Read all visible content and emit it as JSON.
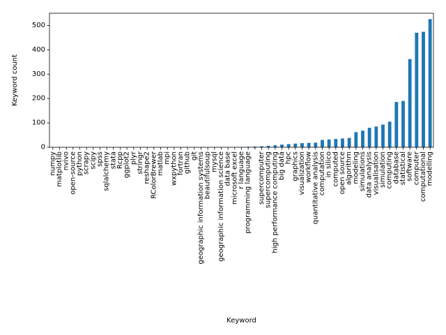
{
  "chart_data": {
    "type": "bar",
    "xlabel": "Keyword",
    "ylabel": "Keyword count",
    "ylim": [
      0,
      550
    ],
    "yticks": [
      0,
      100,
      200,
      300,
      400,
      500
    ],
    "grid": false,
    "bar_color": "#1f77b4",
    "categories": [
      "numpy",
      "matplotlib",
      "nvivo",
      "open-source",
      "python",
      "scrapy",
      "scipy",
      "spss",
      "sqlalchemy",
      "stata",
      "Rcpp",
      "ggplot2",
      "plyr",
      "stringr",
      "reshape2",
      "RColorBrewer",
      "matlab",
      "mpi",
      "wxpython",
      "fortran",
      "github",
      "git",
      "geographic information systems",
      "beautifulsoup",
      "mysql",
      "geographic information science",
      "data base",
      "microsoft excel",
      "r language",
      "programming language",
      "",
      "supercomputer",
      "supercomputing",
      "high performance computing",
      "big data",
      "hpc",
      "graphics",
      "visualization",
      "workflow",
      "quantitative analysis",
      "computation",
      "in silico",
      "computed",
      "open source",
      "algorithm",
      "modeling",
      "simulations",
      "data analysis",
      "visualisation",
      "simulation",
      "computing",
      "database",
      "statistical",
      "software",
      "computer",
      "computational",
      "modelling"
    ],
    "values": [
      0,
      0,
      0,
      0,
      0,
      0,
      0,
      0,
      0,
      0,
      0,
      0,
      0,
      0,
      0,
      0,
      0,
      0,
      0,
      0,
      0,
      0,
      0,
      0,
      0,
      0,
      0,
      0,
      1,
      2,
      3,
      4,
      6,
      8,
      11,
      13,
      15,
      17,
      18,
      19,
      30,
      32,
      34,
      36,
      38,
      62,
      68,
      80,
      85,
      93,
      105,
      186,
      190,
      362,
      470,
      474,
      526
    ]
  }
}
